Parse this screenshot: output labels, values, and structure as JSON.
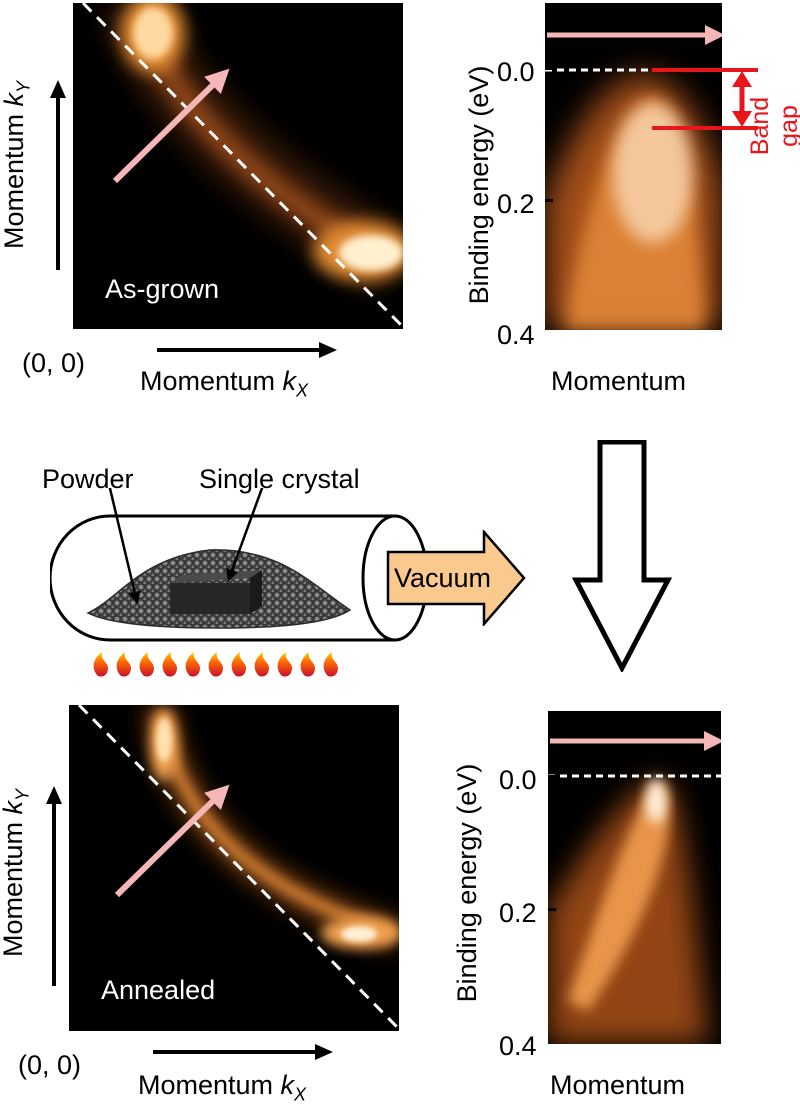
{
  "top": {
    "map": {
      "sample_label": "As-grown",
      "ylabel_main": "Momentum ",
      "ylabel_sym": "k",
      "ylabel_sub": "Y",
      "xlabel_main": "Momentum ",
      "xlabel_sym": "k",
      "xlabel_sub": "X",
      "origin_label": "(0, 0)"
    },
    "edc": {
      "ylabel": "Binding energy (eV)",
      "xlabel": "Momentum",
      "ticks": [
        "0.0",
        "0.2",
        "0.4"
      ],
      "gap_label_line1": "Band",
      "gap_label_line2": "gap"
    }
  },
  "middle": {
    "powder_label": "Powder",
    "crystal_label": "Single crystal",
    "vacuum_label": "Vacuum"
  },
  "bottom": {
    "map": {
      "sample_label": "Annealed",
      "ylabel_main": "Momentum ",
      "ylabel_sym": "k",
      "ylabel_sub": "Y",
      "xlabel_main": "Momentum ",
      "xlabel_sym": "k",
      "xlabel_sub": "X",
      "origin_label": "(0, 0)"
    },
    "edc": {
      "ylabel": "Binding energy (eV)",
      "xlabel": "Momentum",
      "ticks": [
        "0.0",
        "0.2",
        "0.4"
      ]
    }
  },
  "colors": {
    "spectral_glow": "#ff9a30",
    "cut_arrow": "#f4b6b6",
    "band_gap_marker": "#e8161b",
    "vacuum_arrow": "#f9c98e",
    "panel_bg": "#000000"
  }
}
